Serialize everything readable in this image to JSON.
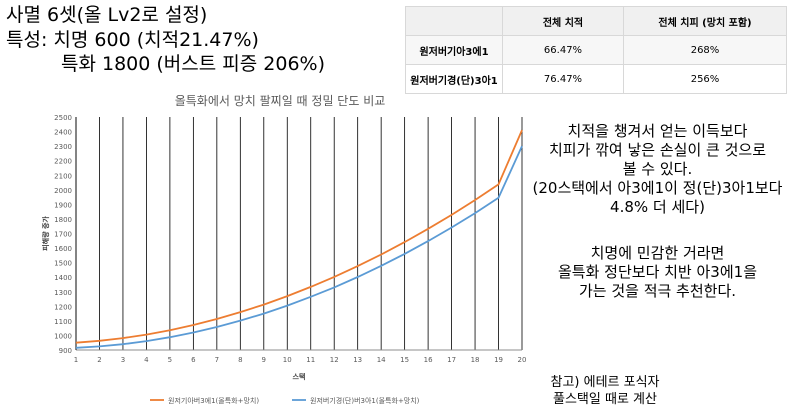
{
  "header": {
    "line1": "사멸 6셋(올 Lv2로 설정)",
    "line2": "특성: 치명 600 (치적21.47%)",
    "line3": "특화 1800 (버스트 피증 206%)"
  },
  "table": {
    "headers": [
      "",
      "전체 치적",
      "전체 치피 (망치 포함)"
    ],
    "rows": [
      [
        "원저버기아3에1",
        "66.47%",
        "268%"
      ],
      [
        "원저버기경(단)3아1",
        "76.47%",
        "256%"
      ]
    ]
  },
  "chart_data": {
    "type": "line",
    "title": "올특화에서 망치 팔찌일 때 정밀 단도 비교",
    "xlabel": "스택",
    "ylabel": "피해량 증가",
    "x": [
      1,
      2,
      3,
      4,
      5,
      6,
      7,
      8,
      9,
      10,
      11,
      12,
      13,
      14,
      15,
      16,
      17,
      18,
      19,
      20
    ],
    "ylim": [
      900,
      2500
    ],
    "yticks": [
      900,
      1000,
      1100,
      1200,
      1300,
      1400,
      1500,
      1600,
      1700,
      1800,
      1900,
      2000,
      2100,
      2200,
      2300,
      2400,
      2500
    ],
    "grid": "vertical",
    "legend": "bottom",
    "series": [
      {
        "name": "원저기아버3에1(올특화+망치)",
        "color": "#ed7d31",
        "values": [
          950,
          963,
          982,
          1006,
          1036,
          1072,
          1113,
          1160,
          1212,
          1270,
          1333,
          1402,
          1476,
          1556,
          1641,
          1732,
          1828,
          1930,
          2037,
          2410
        ]
      },
      {
        "name": "원저버기경(단)버3아1(올특화+망치)",
        "color": "#5b9bd5",
        "values": [
          915,
          925,
          940,
          961,
          988,
          1020,
          1058,
          1102,
          1150,
          1205,
          1265,
          1330,
          1401,
          1478,
          1560,
          1648,
          1741,
          1840,
          1945,
          2300
        ]
      }
    ]
  },
  "notes": {
    "paragraph1": [
      "치적을 챙겨서 얻는 이득보다",
      "치피가 깎여 낳은 손실이 큰 것으로",
      "볼 수 있다.",
      "(20스택에서 아3에1이 정(단)3아1보다",
      "4.8% 더 세다)"
    ],
    "paragraph2": [
      "치명에 민감한 거라면",
      "올특화 정단보다 치반 아3에1을",
      "가는 것을 적극 추천한다."
    ],
    "reference": [
      "참고) 에테르 포식자",
      "풀스택일 때로 계산"
    ]
  }
}
